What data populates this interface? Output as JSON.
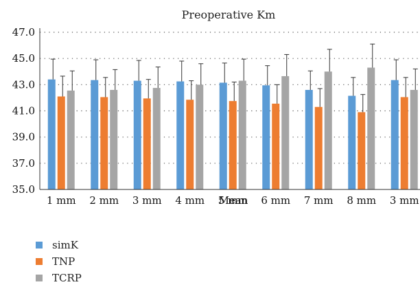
{
  "chart_data": {
    "type": "bar",
    "title": "Preoperative Km",
    "xlabel": "Mean",
    "ylabel": "",
    "ylim": [
      35.0,
      47.0
    ],
    "yticks": [
      "35.0",
      "37.0",
      "39.0",
      "41.0",
      "43.0",
      "45.0",
      "47.0"
    ],
    "grid": "dotted horizontal",
    "error_bars": true,
    "legend_position": "bottom-left",
    "categories": [
      "1 mm",
      "2 mm",
      "3 mm",
      "4 mm",
      "5 mm",
      "6 mm",
      "7 mm",
      "8 mm",
      "3 mm"
    ],
    "series": [
      {
        "name": "simK",
        "color": "#5b9bd5",
        "values": [
          43.4,
          43.35,
          43.3,
          43.25,
          43.15,
          42.95,
          42.6,
          42.15,
          43.35
        ],
        "errors": [
          1.55,
          1.55,
          1.55,
          1.55,
          1.5,
          1.5,
          1.45,
          1.4,
          1.55
        ]
      },
      {
        "name": "TNP",
        "color": "#ed7d31",
        "values": [
          42.1,
          42.05,
          41.95,
          41.85,
          41.75,
          41.55,
          41.3,
          40.9,
          42.05
        ],
        "errors": [
          1.55,
          1.5,
          1.45,
          1.45,
          1.45,
          1.45,
          1.4,
          1.35,
          1.5
        ]
      },
      {
        "name": "TCRP",
        "color": "#a5a5a5",
        "values": [
          42.55,
          42.6,
          42.75,
          43.0,
          43.3,
          43.65,
          44.0,
          44.3,
          42.6
        ],
        "errors": [
          1.5,
          1.55,
          1.6,
          1.6,
          1.65,
          1.65,
          1.7,
          1.8,
          1.6
        ]
      }
    ]
  }
}
